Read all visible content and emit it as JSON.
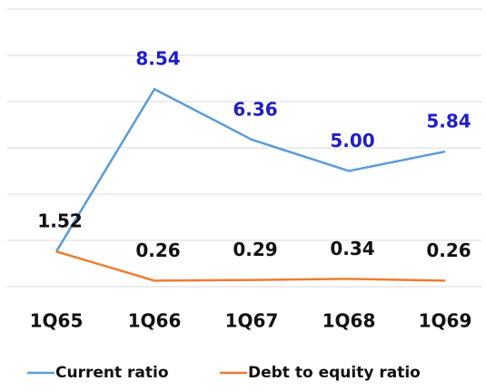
{
  "chart_data": {
    "type": "line",
    "categories": [
      "1Q65",
      "1Q66",
      "1Q67",
      "1Q68",
      "1Q69"
    ],
    "series": [
      {
        "name": "Current ratio",
        "color": "#5b9bd5",
        "label_color": "#1f1fc8",
        "values": [
          1.52,
          8.54,
          6.36,
          5.0,
          5.84
        ],
        "value_labels": [
          "1.52",
          "8.54",
          "6.36",
          "5.00",
          "5.84"
        ]
      },
      {
        "name": "Debt to equity ratio",
        "color": "#ed7d31",
        "label_color": "#111111",
        "values": [
          1.52,
          0.26,
          0.29,
          0.34,
          0.26
        ],
        "value_labels": [
          "1.52",
          "0.26",
          "0.29",
          "0.34",
          "0.26"
        ]
      }
    ],
    "ylim": [
      0,
      12
    ],
    "yticks": [
      0,
      2,
      4,
      6,
      8,
      10,
      12
    ],
    "grid": true,
    "legend": "bottom"
  }
}
